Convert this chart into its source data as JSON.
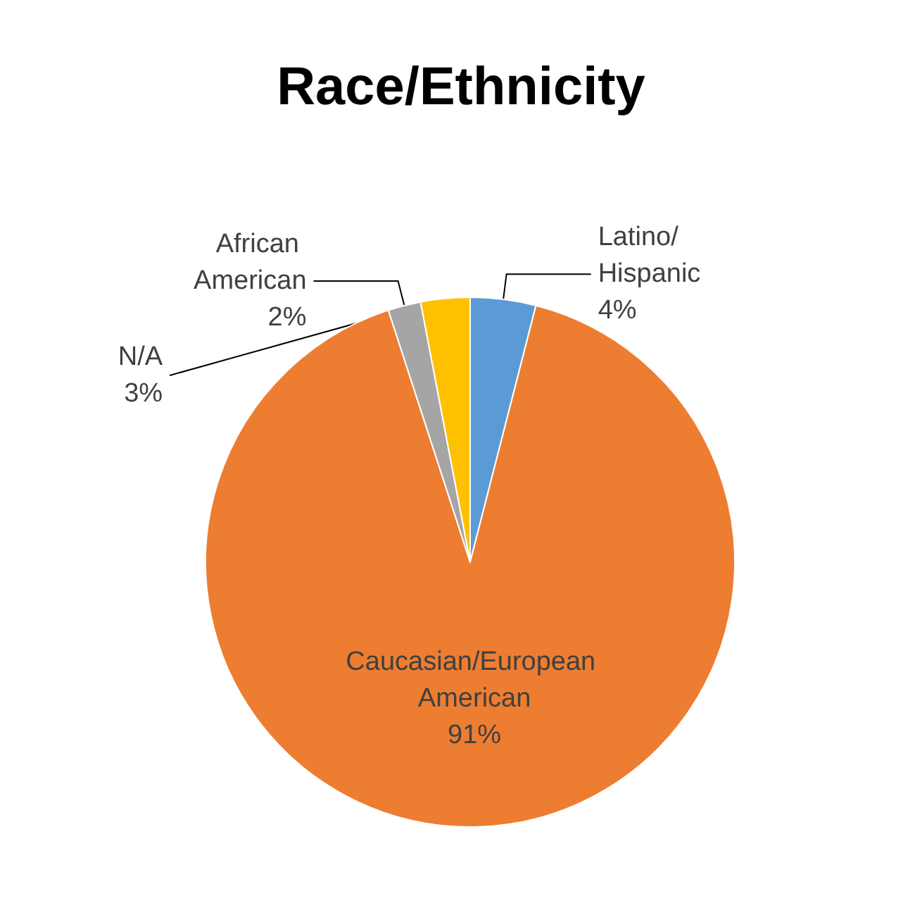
{
  "chart_data": {
    "type": "pie",
    "title": "Race/Ethnicity",
    "categories": [
      "Latino/Hispanic",
      "Caucasian/European American",
      "African American",
      "N/A"
    ],
    "values": [
      4,
      91,
      2,
      3
    ],
    "colors": [
      "#5b9bd5",
      "#ed7d31",
      "#a5a5a5",
      "#ffc000"
    ],
    "value_labels": [
      "4%",
      "91%",
      "2%",
      "3%"
    ],
    "legend": false
  }
}
